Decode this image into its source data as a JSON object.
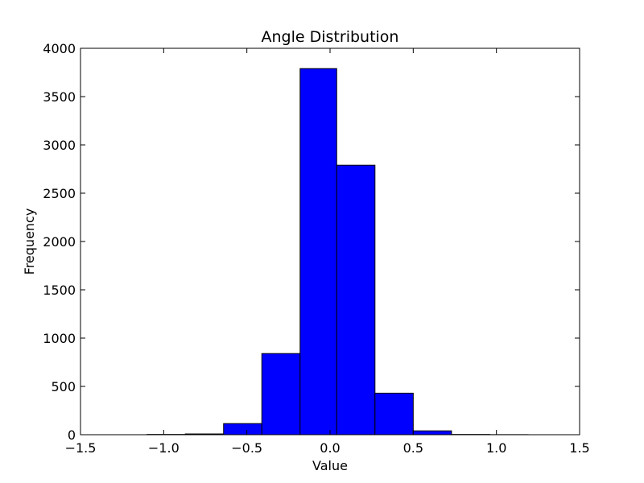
{
  "chart_data": {
    "type": "bar",
    "title": "Angle Distribution",
    "xlabel": "Value",
    "ylabel": "Frequency",
    "xlim": [
      -1.5,
      1.5
    ],
    "ylim": [
      0,
      4000
    ],
    "x_ticks": [
      "−1.5",
      "−1.0",
      "−0.5",
      "0.0",
      "0.5",
      "1.0",
      "1.5"
    ],
    "y_ticks": [
      "0",
      "500",
      "1000",
      "1500",
      "2000",
      "2500",
      "3000",
      "3500",
      "4000"
    ],
    "bins": [
      {
        "start": -1.1,
        "end": -0.87,
        "value": 3
      },
      {
        "start": -0.87,
        "end": -0.64,
        "value": 8
      },
      {
        "start": -0.64,
        "end": -0.41,
        "value": 115
      },
      {
        "start": -0.41,
        "end": -0.18,
        "value": 840
      },
      {
        "start": -0.18,
        "end": 0.04,
        "value": 3790
      },
      {
        "start": 0.04,
        "end": 0.27,
        "value": 2790
      },
      {
        "start": 0.27,
        "end": 0.5,
        "value": 430
      },
      {
        "start": 0.5,
        "end": 0.73,
        "value": 40
      },
      {
        "start": 0.73,
        "end": 0.96,
        "value": 3
      },
      {
        "start": 0.96,
        "end": 1.19,
        "value": 1
      }
    ],
    "bar_color": "#0000ff",
    "edge_color": "#000000",
    "grid": false,
    "legend": "none"
  }
}
